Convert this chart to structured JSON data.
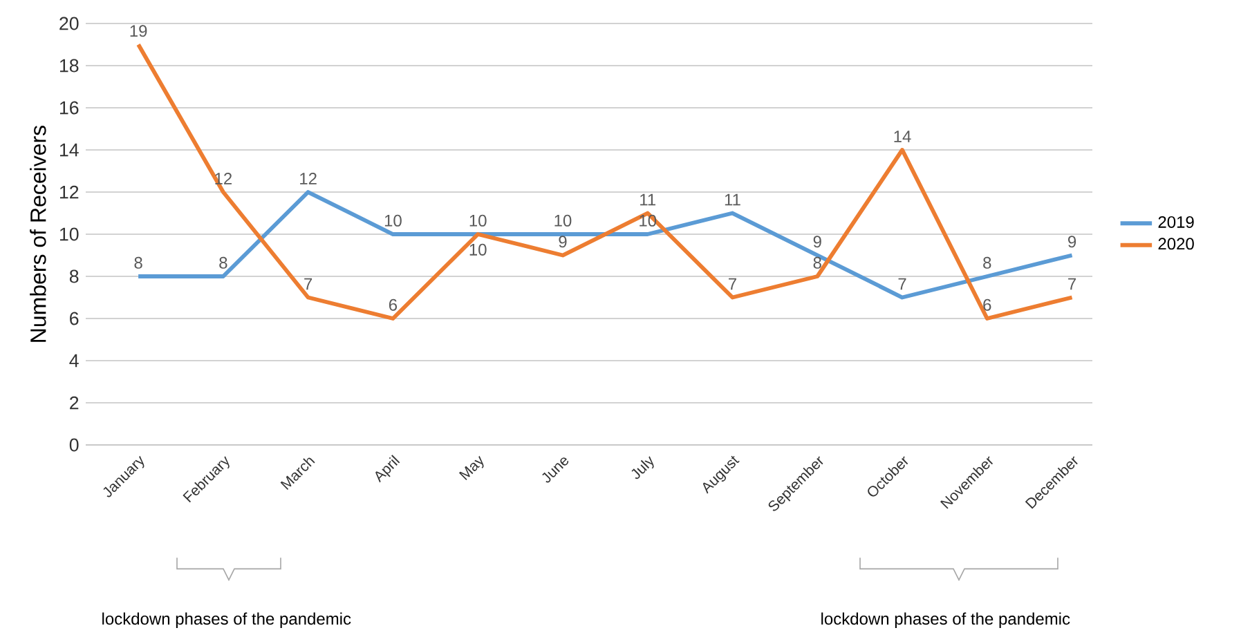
{
  "chart_data": {
    "type": "line",
    "ylabel": "Numbers of Receivers",
    "categories": [
      "January",
      "February",
      "March",
      "April",
      "May",
      "June",
      "July",
      "August",
      "September",
      "October",
      "November",
      "December"
    ],
    "series": [
      {
        "name": "2019",
        "color": "#5b9bd5",
        "values": [
          8,
          8,
          12,
          10,
          10,
          10,
          10,
          11,
          9,
          7,
          8,
          9
        ]
      },
      {
        "name": "2020",
        "color": "#ed7d31",
        "values": [
          19,
          12,
          7,
          6,
          10,
          9,
          11,
          7,
          8,
          14,
          6,
          7
        ]
      }
    ],
    "ylim": [
      0,
      20
    ],
    "yticks": [
      0,
      2,
      4,
      6,
      8,
      10,
      12,
      14,
      16,
      18,
      20
    ],
    "grid": "y",
    "legend": "right",
    "data_labels": true,
    "marker": "none",
    "line_style": "solid",
    "annotations": [
      "lockdown phases of the pandemic",
      "lockdown phases of the pandemic"
    ]
  }
}
